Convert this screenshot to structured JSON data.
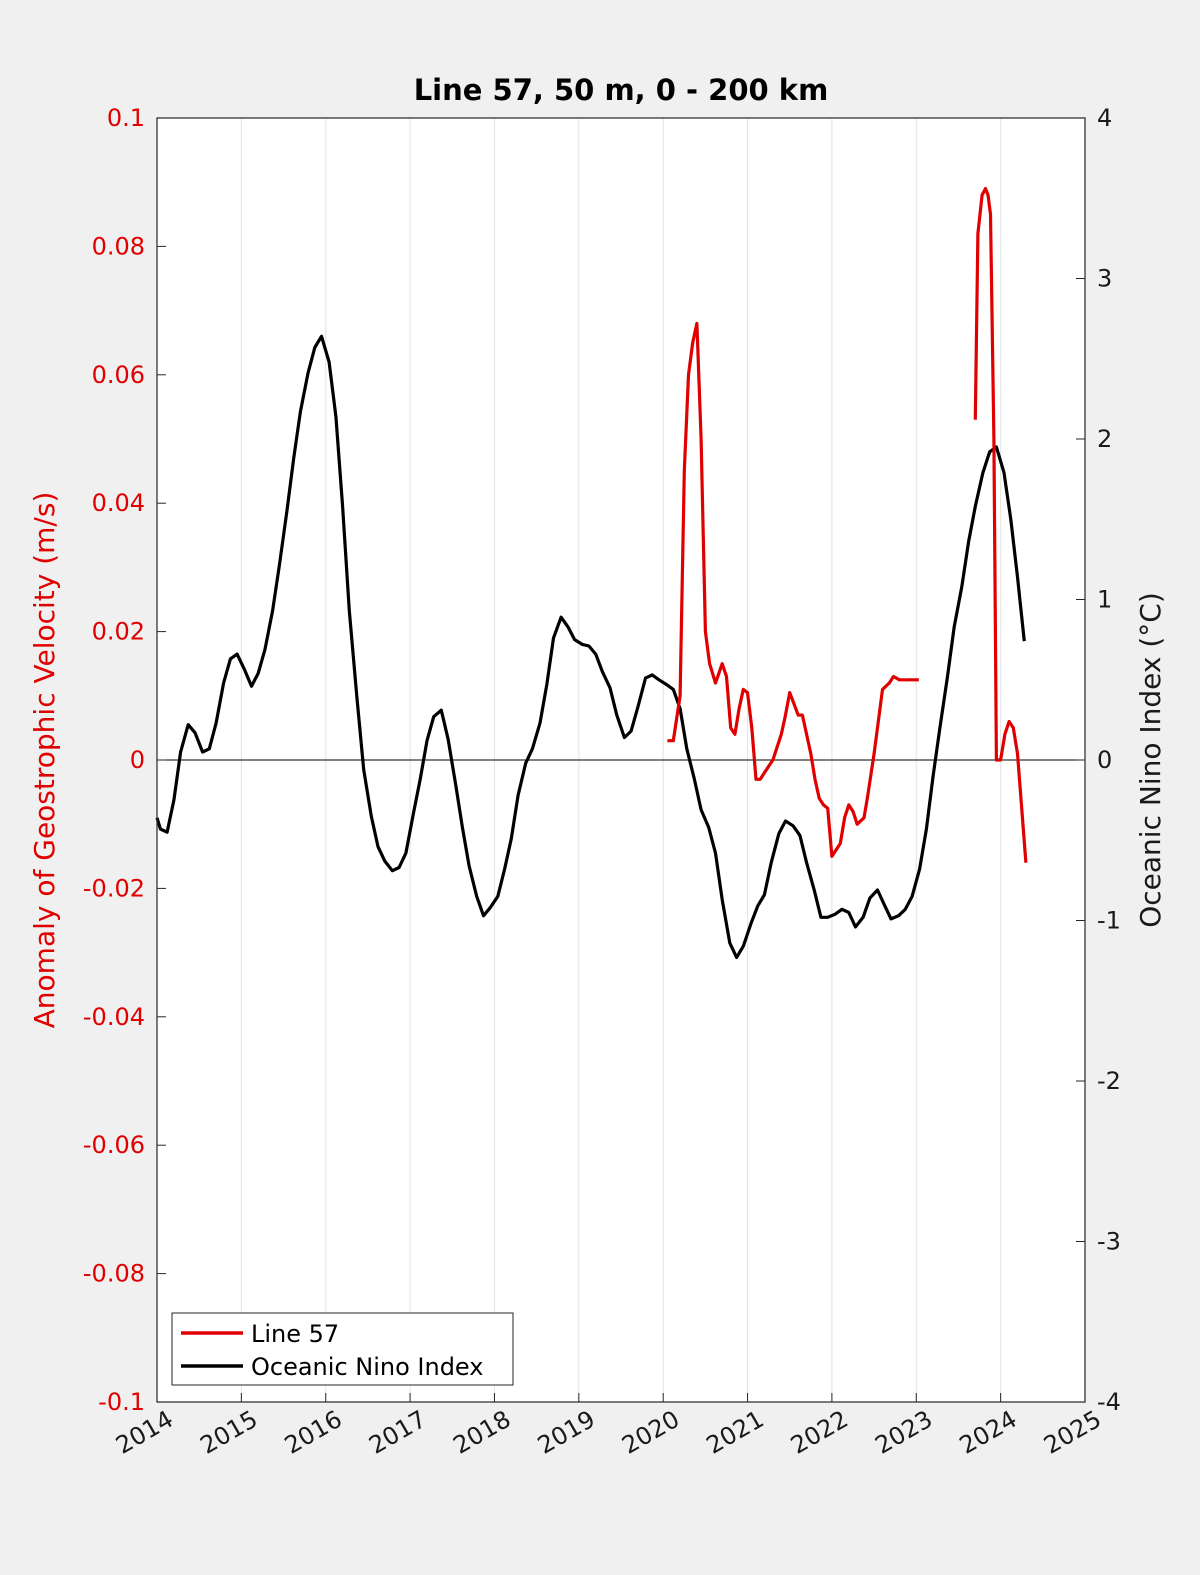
{
  "chart_data": {
    "type": "line",
    "title": "Line 57, 50 m, 0 - 200 km",
    "xlabel": "",
    "ylabel_left": "Anomaly of Geostrophic Velocity (m/s)",
    "ylabel_right": "Oceanic Nino Index (°C)",
    "xlim": [
      2014,
      2025
    ],
    "ylim_left": [
      -0.1,
      0.1
    ],
    "ylim_right": [
      -4,
      4
    ],
    "x_ticks": [
      "2014",
      "2015",
      "2016",
      "2017",
      "2018",
      "2019",
      "2020",
      "2021",
      "2022",
      "2023",
      "2024",
      "2025"
    ],
    "y_left_ticks": [
      "-0.1",
      "-0.08",
      "-0.06",
      "-0.04",
      "-0.02",
      "0",
      "0.02",
      "0.04",
      "0.06",
      "0.08",
      "0.1"
    ],
    "y_right_ticks": [
      "-4",
      "-3",
      "-2",
      "-1",
      "0",
      "1",
      "2",
      "3",
      "4"
    ],
    "grid": "vertical",
    "zero_line": true,
    "legend_position": "bottom-left",
    "series": [
      {
        "name": "Line 57",
        "axis": "left",
        "color": "#e00000",
        "segments": [
          {
            "x": [
              2020.05,
              2020.12,
              2020.2,
              2020.25,
              2020.3,
              2020.35,
              2020.4,
              2020.45,
              2020.5,
              2020.55,
              2020.62,
              2020.7,
              2020.75,
              2020.8,
              2020.85,
              2020.9,
              2020.95,
              2021.0,
              2021.05,
              2021.1,
              2021.15,
              2021.2,
              2021.25,
              2021.3,
              2021.4,
              2021.45,
              2021.5,
              2021.6,
              2021.65,
              2021.7,
              2021.75,
              2021.8,
              2021.85,
              2021.9,
              2021.95,
              2022.0,
              2022.1,
              2022.15,
              2022.2,
              2022.25,
              2022.3,
              2022.38,
              2022.42,
              2022.5,
              2022.6,
              2022.68,
              2022.73,
              2022.8,
              2022.85,
              2022.9,
              2022.95,
              2023.0,
              2023.03
            ],
            "y": [
              0.003,
              0.003,
              0.01,
              0.045,
              0.06,
              0.065,
              0.068,
              0.05,
              0.02,
              0.015,
              0.012,
              0.015,
              0.013,
              0.005,
              0.004,
              0.008,
              0.011,
              0.0105,
              0.005,
              -0.003,
              -0.003,
              -0.002,
              -0.001,
              0.0,
              0.004,
              0.007,
              0.0105,
              0.007,
              0.007,
              0.004,
              0.001,
              -0.003,
              -0.006,
              -0.007,
              -0.0075,
              -0.015,
              -0.013,
              -0.009,
              -0.007,
              -0.008,
              -0.01,
              -0.009,
              -0.006,
              0.001,
              0.011,
              0.012,
              0.013,
              0.0125,
              0.0125,
              0.0125,
              0.0125,
              0.0125,
              0.0125
            ]
          },
          {
            "x": [
              2023.7,
              2023.73,
              2023.78,
              2023.82,
              2023.85,
              2023.88,
              2023.92,
              2023.95,
              2024.0,
              2024.05,
              2024.1,
              2024.15,
              2024.2,
              2024.3
            ],
            "y": [
              0.053,
              0.082,
              0.088,
              0.089,
              0.088,
              0.085,
              0.05,
              0.0,
              0.0,
              0.004,
              0.006,
              0.005,
              0.001,
              -0.016
            ]
          }
        ]
      },
      {
        "name": "Oceanic Nino Index",
        "axis": "right",
        "color": "#000000",
        "x": [
          2014.0,
          2014.04,
          2014.12,
          2014.2,
          2014.28,
          2014.37,
          2014.45,
          2014.54,
          2014.62,
          2014.7,
          2014.79,
          2014.87,
          2014.95,
          2015.04,
          2015.12,
          2015.2,
          2015.28,
          2015.37,
          2015.45,
          2015.54,
          2015.62,
          2015.7,
          2015.79,
          2015.87,
          2015.95,
          2016.04,
          2016.12,
          2016.2,
          2016.28,
          2016.37,
          2016.45,
          2016.54,
          2016.62,
          2016.7,
          2016.79,
          2016.87,
          2016.95,
          2017.04,
          2017.12,
          2017.2,
          2017.28,
          2017.37,
          2017.45,
          2017.54,
          2017.62,
          2017.7,
          2017.79,
          2017.87,
          2017.95,
          2018.04,
          2018.12,
          2018.2,
          2018.28,
          2018.37,
          2018.45,
          2018.54,
          2018.62,
          2018.7,
          2018.79,
          2018.87,
          2018.95,
          2019.04,
          2019.12,
          2019.2,
          2019.28,
          2019.37,
          2019.45,
          2019.54,
          2019.62,
          2019.7,
          2019.79,
          2019.87,
          2019.95,
          2020.04,
          2020.12,
          2020.2,
          2020.28,
          2020.37,
          2020.45,
          2020.54,
          2020.62,
          2020.7,
          2020.79,
          2020.87,
          2020.95,
          2021.04,
          2021.12,
          2021.2,
          2021.28,
          2021.37,
          2021.45,
          2021.54,
          2021.62,
          2021.7,
          2021.79,
          2021.87,
          2021.95,
          2022.04,
          2022.12,
          2022.2,
          2022.28,
          2022.37,
          2022.45,
          2022.54,
          2022.62,
          2022.7,
          2022.79,
          2022.87,
          2022.95,
          2023.04,
          2023.12,
          2023.2,
          2023.28,
          2023.37,
          2023.45,
          2023.54,
          2023.62,
          2023.7,
          2023.79,
          2023.87,
          2023.95,
          2024.04,
          2024.12,
          2024.2,
          2024.28
        ],
        "y": [
          -0.36,
          -0.43,
          -0.45,
          -0.25,
          0.05,
          0.22,
          0.17,
          0.05,
          0.07,
          0.23,
          0.48,
          0.63,
          0.66,
          0.56,
          0.46,
          0.54,
          0.69,
          0.93,
          1.21,
          1.55,
          1.88,
          2.17,
          2.41,
          2.57,
          2.64,
          2.48,
          2.14,
          1.58,
          0.93,
          0.39,
          -0.06,
          -0.35,
          -0.54,
          -0.63,
          -0.69,
          -0.67,
          -0.58,
          -0.33,
          -0.12,
          0.12,
          0.27,
          0.31,
          0.13,
          -0.15,
          -0.42,
          -0.66,
          -0.85,
          -0.97,
          -0.92,
          -0.85,
          -0.68,
          -0.49,
          -0.22,
          -0.02,
          0.07,
          0.23,
          0.47,
          0.76,
          0.89,
          0.83,
          0.75,
          0.72,
          0.71,
          0.66,
          0.55,
          0.45,
          0.28,
          0.14,
          0.18,
          0.33,
          0.51,
          0.53,
          0.5,
          0.47,
          0.44,
          0.32,
          0.07,
          -0.12,
          -0.31,
          -0.42,
          -0.58,
          -0.87,
          -1.14,
          -1.23,
          -1.16,
          -1.02,
          -0.91,
          -0.84,
          -0.64,
          -0.46,
          -0.38,
          -0.41,
          -0.47,
          -0.64,
          -0.81,
          -0.98,
          -0.98,
          -0.96,
          -0.93,
          -0.95,
          -1.04,
          -0.98,
          -0.86,
          -0.81,
          -0.9,
          -0.99,
          -0.97,
          -0.93,
          -0.85,
          -0.68,
          -0.43,
          -0.1,
          0.2,
          0.52,
          0.83,
          1.08,
          1.36,
          1.58,
          1.79,
          1.92,
          1.95,
          1.79,
          1.5,
          1.14,
          0.74
        ]
      }
    ]
  }
}
